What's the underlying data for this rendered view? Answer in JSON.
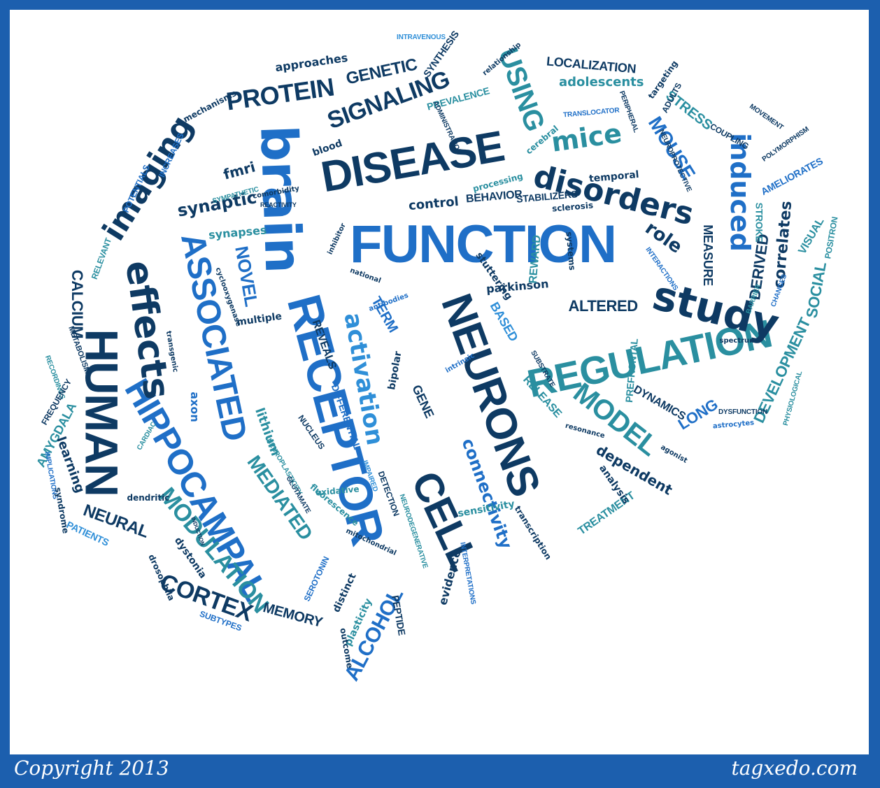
{
  "footer": {
    "copyright": "Copyright 2013",
    "site": "tagxedo.com"
  },
  "colors": {
    "frame": "#1c5fae",
    "navy": "#0e3a63",
    "blue": "#1f6fc7",
    "teal": "#2a8fa0",
    "sky": "#2f8fd8"
  },
  "words": [
    {
      "t": "NEURONS"
    },
    {
      "t": "FUNCTION"
    },
    {
      "t": "RECEPTOR"
    },
    {
      "t": "DISEASE"
    },
    {
      "t": "brain"
    },
    {
      "t": "REGULATION"
    },
    {
      "t": "study"
    },
    {
      "t": "HUMAN"
    },
    {
      "t": "ASSOCIATED"
    },
    {
      "t": "HIPPOCAMPAL"
    },
    {
      "t": "CELL"
    },
    {
      "t": "effects"
    },
    {
      "t": "disorders"
    },
    {
      "t": "imaging"
    },
    {
      "t": "SIGNALING"
    },
    {
      "t": "PROTEIN"
    },
    {
      "t": "GENETIC"
    },
    {
      "t": "USING"
    },
    {
      "t": "mice"
    },
    {
      "t": "MOUSE"
    },
    {
      "t": "induced"
    },
    {
      "t": "MODEL"
    },
    {
      "t": "MODULATION"
    },
    {
      "t": "CORTEX"
    },
    {
      "t": "activation"
    },
    {
      "t": "MEDIATED"
    },
    {
      "t": "ALCOHOL"
    },
    {
      "t": "NOVEL"
    },
    {
      "t": "connectivity"
    },
    {
      "t": "LOCALIZATION"
    },
    {
      "t": "adolescents"
    },
    {
      "t": "STRESS"
    },
    {
      "t": "role"
    },
    {
      "t": "correlates"
    },
    {
      "t": "SOCIAL"
    },
    {
      "t": "DEVELOPMENT"
    },
    {
      "t": "LONG"
    },
    {
      "t": "dependent"
    },
    {
      "t": "ALTERED"
    },
    {
      "t": "parkinson"
    },
    {
      "t": "CALCIUM"
    },
    {
      "t": "NEURAL"
    },
    {
      "t": "AMYGDALA"
    },
    {
      "t": "learning"
    },
    {
      "t": "fmri"
    },
    {
      "t": "synaptic"
    },
    {
      "t": "synapses"
    },
    {
      "t": "control"
    },
    {
      "t": "BEHAVIOR"
    },
    {
      "t": "approaches"
    },
    {
      "t": "mechanisms"
    },
    {
      "t": "INCREASES"
    },
    {
      "t": "POTENTIALS"
    },
    {
      "t": "RELEVANT"
    },
    {
      "t": "METABOLISM"
    },
    {
      "t": "RECORDINGS"
    },
    {
      "t": "FREQUENCY"
    },
    {
      "t": "IMPLICATIONS"
    },
    {
      "t": "syndrome"
    },
    {
      "t": "PATIENTS"
    },
    {
      "t": "dendritic"
    },
    {
      "t": "transgenic"
    },
    {
      "t": "axon"
    },
    {
      "t": "lithium"
    },
    {
      "t": "multiple"
    },
    {
      "t": "cyclooxygenase"
    },
    {
      "t": "CARDIAC"
    },
    {
      "t": "NEUROPLASTICITY"
    },
    {
      "t": "GLUTAMATE"
    },
    {
      "t": "fluorescence"
    },
    {
      "t": "oxidative"
    },
    {
      "t": "NUCLEUS"
    },
    {
      "t": "DIFFERENTIAL"
    },
    {
      "t": "REVEALS"
    },
    {
      "t": "TERM"
    },
    {
      "t": "bipolar"
    },
    {
      "t": "GENE"
    },
    {
      "t": "IMPAIRED"
    },
    {
      "t": "DETECTION"
    },
    {
      "t": "NEURODEGENERATIVE"
    },
    {
      "t": "evidence"
    },
    {
      "t": "INTERPRETATIONS"
    },
    {
      "t": "PEPTIDE"
    },
    {
      "t": "plasticity"
    },
    {
      "t": "outcome"
    },
    {
      "t": "distinct"
    },
    {
      "t": "mitochondrial"
    },
    {
      "t": "SEROTONIN"
    },
    {
      "t": "MEMORY"
    },
    {
      "t": "dystonia"
    },
    {
      "t": "drosophila"
    },
    {
      "t": "INDUCTION"
    },
    {
      "t": "SUBTYPES"
    },
    {
      "t": "sensitivity"
    },
    {
      "t": "transcription"
    },
    {
      "t": "TREATMENT"
    },
    {
      "t": "analysis"
    },
    {
      "t": "resonance"
    },
    {
      "t": "agonist"
    },
    {
      "t": "astrocytes"
    },
    {
      "t": "DYSFUNCTION"
    },
    {
      "t": "spectrum"
    },
    {
      "t": "PHYSIOLOGICAL"
    },
    {
      "t": "DYNAMICS"
    },
    {
      "t": "RELEASE"
    },
    {
      "t": "SUBSTRATE"
    },
    {
      "t": "PREFRONTAL"
    },
    {
      "t": "intrinsic"
    },
    {
      "t": "BASED"
    },
    {
      "t": "antibodies"
    },
    {
      "t": "national"
    },
    {
      "t": "stuttering"
    },
    {
      "t": "REWARD"
    },
    {
      "t": "systems"
    },
    {
      "t": "MEASURE"
    },
    {
      "t": "DERIVED"
    },
    {
      "t": "STROKE"
    },
    {
      "t": "VISUAL"
    },
    {
      "t": "POSITRON"
    },
    {
      "t": "CHANGES"
    },
    {
      "t": "BARRIER"
    },
    {
      "t": "INTERACTIONS"
    },
    {
      "t": "sclerosis"
    },
    {
      "t": "STABILIZERS"
    },
    {
      "t": "temporal"
    },
    {
      "t": "AMELIORATES"
    },
    {
      "t": "POLYMORPHISM"
    },
    {
      "t": "COUPLING"
    },
    {
      "t": "MOVEMENT"
    },
    {
      "t": "NEUROPROTECTIVE"
    },
    {
      "t": "PERIPHERAL"
    },
    {
      "t": "TRANSLOCATOR"
    },
    {
      "t": "ADULTS"
    },
    {
      "t": "targeting"
    },
    {
      "t": "cerebral"
    },
    {
      "t": "PREVALENCE"
    },
    {
      "t": "ADMINISTRATION"
    },
    {
      "t": "processing"
    },
    {
      "t": "relationship"
    },
    {
      "t": "SYNTHESIS"
    },
    {
      "t": "INTRAVENOUS"
    },
    {
      "t": "blood"
    },
    {
      "t": "comorbidity"
    },
    {
      "t": "REACTIVITY"
    },
    {
      "t": "SYMPATHETIC"
    },
    {
      "t": "inhibitor"
    }
  ]
}
